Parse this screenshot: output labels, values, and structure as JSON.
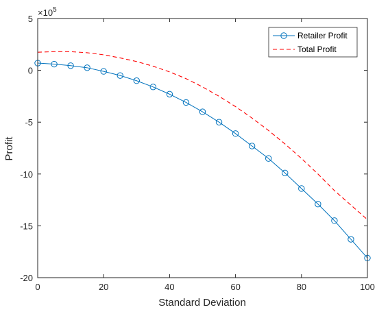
{
  "chart_data": {
    "type": "line",
    "title": "",
    "xlabel": "Standard Deviation",
    "ylabel": "Profit",
    "y_exponent_label": "×10",
    "y_exponent_power": "5",
    "xlim": [
      0,
      100
    ],
    "ylim": [
      -20,
      5
    ],
    "x_ticks": [
      0,
      20,
      40,
      60,
      80,
      100
    ],
    "y_ticks": [
      -20,
      -15,
      -10,
      -5,
      0,
      5
    ],
    "grid": false,
    "legend_position": "top-right",
    "series": [
      {
        "name": "Retailer Profit",
        "color": "#0072BD",
        "line_style": "solid",
        "marker": "circle",
        "x": [
          0,
          5,
          10,
          15,
          20,
          25,
          30,
          35,
          40,
          45,
          50,
          55,
          60,
          65,
          70,
          75,
          80,
          85,
          90,
          95,
          100
        ],
        "y": [
          0.7,
          0.6,
          0.45,
          0.25,
          -0.1,
          -0.5,
          -1.0,
          -1.6,
          -2.3,
          -3.1,
          -4.0,
          -5.0,
          -6.1,
          -7.3,
          -8.5,
          -9.9,
          -11.4,
          -12.9,
          -14.5,
          -16.3,
          -18.1
        ]
      },
      {
        "name": "Total Profit",
        "color": "#FF0000",
        "line_style": "dashed",
        "marker": "none",
        "x": [
          0,
          5,
          10,
          15,
          20,
          25,
          30,
          35,
          40,
          45,
          50,
          55,
          60,
          65,
          70,
          75,
          80,
          85,
          90,
          95,
          100
        ],
        "y": [
          1.75,
          1.8,
          1.8,
          1.7,
          1.5,
          1.2,
          0.85,
          0.4,
          -0.15,
          -0.8,
          -1.6,
          -2.5,
          -3.5,
          -4.6,
          -5.8,
          -7.1,
          -8.5,
          -10.0,
          -11.6,
          -13.0,
          -14.4
        ]
      }
    ]
  }
}
